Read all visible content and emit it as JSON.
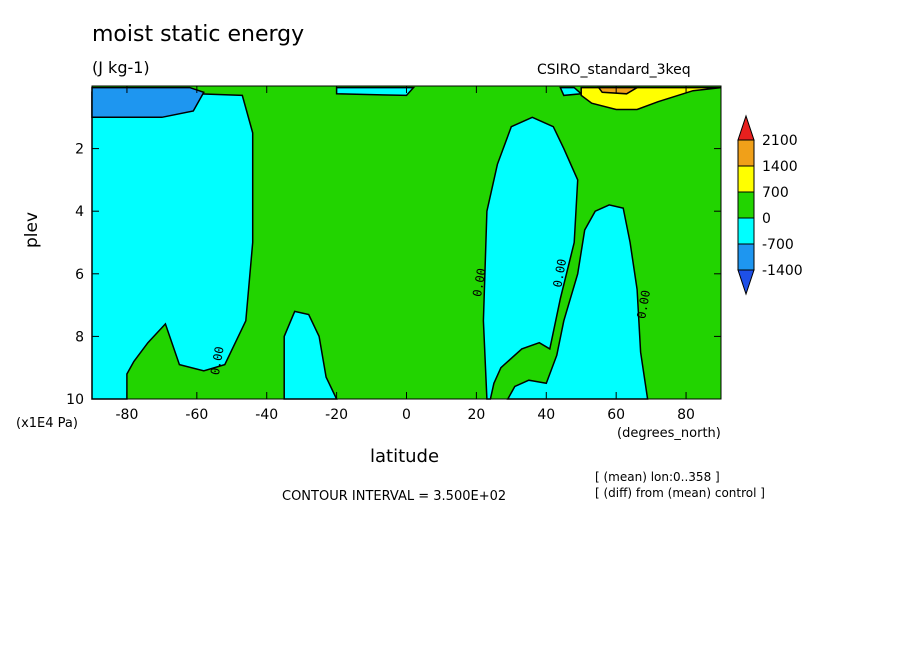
{
  "chart_data": {
    "type": "heatmap",
    "title": "moist static energy",
    "units": "(J kg-1)",
    "dataset": "CSIRO_standard_3keq",
    "xlabel": "latitude",
    "x_units": "(degrees_north)",
    "ylabel": "plev",
    "y_units": "(x1E4 Pa)",
    "xlim": [
      -90,
      90
    ],
    "ylim": [
      10,
      0
    ],
    "x_ticks": [
      "-80",
      "-60",
      "-40",
      "-20",
      "0",
      "20",
      "40",
      "60",
      "80"
    ],
    "x_tick_values": [
      -80,
      -60,
      -40,
      -20,
      0,
      20,
      40,
      60,
      80
    ],
    "y_ticks": [
      "2",
      "4",
      "6",
      "8",
      "10"
    ],
    "y_tick_values": [
      2,
      4,
      6,
      8,
      10
    ],
    "contour_interval": "CONTOUR INTERVAL = 3.500E+02",
    "notes": [
      "[ (mean) lon:0..358 ]",
      "[ (diff) from (mean) control ]"
    ],
    "contour_labels": [
      {
        "text": "0.00",
        "x": -53,
        "y": 8.8
      },
      {
        "text": "0.00",
        "x": 22,
        "y": 6.3
      },
      {
        "text": "0.00",
        "x": 45,
        "y": 6.0
      },
      {
        "text": "0.00",
        "x": 69,
        "y": 7.0
      }
    ],
    "legend": {
      "levels": [
        "2100",
        "1400",
        "700",
        "0",
        "-700",
        "-1400"
      ],
      "colors": [
        "#e8201e",
        "#f0a019",
        "#ffff00",
        "#22d400",
        "#00ffff",
        "#1e96f0",
        "#1e50e8"
      ]
    },
    "fill_colors": {
      "positive_0_700": "#22d400",
      "negative_0_700": "#00ffff",
      "negative_700_1400": "#1e96f0",
      "positive_700_1400": "#ffff00",
      "positive_1400_2100": "#f0a019"
    },
    "regions": [
      {
        "level": "negative_0_700",
        "points": [
          [
            -90,
            0.2
          ],
          [
            -60,
            0.25
          ],
          [
            -47,
            0.3
          ],
          [
            -44,
            1.5
          ],
          [
            -44,
            5
          ],
          [
            -46,
            7.5
          ],
          [
            -52,
            8.9
          ],
          [
            -58,
            9.1
          ],
          [
            -65,
            8.9
          ],
          [
            -69,
            7.6
          ],
          [
            -74,
            8.2
          ],
          [
            -78,
            8.8
          ],
          [
            -80,
            9.2
          ],
          [
            -80,
            10
          ],
          [
            -90,
            10
          ]
        ]
      },
      {
        "level": "negative_700_1400",
        "points": [
          [
            -90,
            0.05
          ],
          [
            -62,
            0.05
          ],
          [
            -58,
            0.2
          ],
          [
            -61,
            0.8
          ],
          [
            -70,
            1.0
          ],
          [
            -80,
            1.0
          ],
          [
            -90,
            1.0
          ]
        ]
      },
      {
        "level": "negative_0_700",
        "points": [
          [
            -35,
            10
          ],
          [
            -35,
            8.0
          ],
          [
            -32,
            7.2
          ],
          [
            -28,
            7.3
          ],
          [
            -25,
            8.0
          ],
          [
            -23,
            9.3
          ],
          [
            -20,
            10
          ]
        ]
      },
      {
        "level": "negative_0_700",
        "points": [
          [
            23,
            10
          ],
          [
            22,
            7.5
          ],
          [
            23,
            4.0
          ],
          [
            26,
            2.5
          ],
          [
            30,
            1.3
          ],
          [
            36,
            1.0
          ],
          [
            42,
            1.3
          ],
          [
            45,
            2.0
          ],
          [
            49,
            3.0
          ],
          [
            48,
            5.0
          ],
          [
            44,
            6.8
          ],
          [
            41,
            8.4
          ],
          [
            38,
            8.2
          ],
          [
            33,
            8.4
          ],
          [
            27,
            9.0
          ],
          [
            25,
            9.5
          ],
          [
            24,
            10
          ]
        ]
      },
      {
        "level": "negative_0_700",
        "points": [
          [
            29,
            10
          ],
          [
            31,
            9.6
          ],
          [
            35,
            9.4
          ],
          [
            40,
            9.5
          ],
          [
            43,
            8.6
          ],
          [
            45,
            7.5
          ],
          [
            49,
            6.0
          ],
          [
            51,
            4.6
          ],
          [
            54,
            4.0
          ],
          [
            58,
            3.8
          ],
          [
            62,
            3.9
          ],
          [
            64,
            5.0
          ],
          [
            66,
            6.5
          ],
          [
            67,
            8.5
          ],
          [
            69,
            10
          ]
        ]
      },
      {
        "level": "negative_0_700",
        "points": [
          [
            -20,
            0.05
          ],
          [
            -20,
            0.25
          ],
          [
            0,
            0.3
          ],
          [
            2,
            0.05
          ]
        ]
      },
      {
        "level": "negative_0_700",
        "points": [
          [
            44,
            0.05
          ],
          [
            45,
            0.3
          ],
          [
            50,
            0.25
          ],
          [
            48,
            0.05
          ]
        ]
      },
      {
        "level": "positive_700_1400",
        "points": [
          [
            50,
            0.05
          ],
          [
            50,
            0.3
          ],
          [
            53,
            0.55
          ],
          [
            60,
            0.75
          ],
          [
            66,
            0.75
          ],
          [
            72,
            0.5
          ],
          [
            82,
            0.15
          ],
          [
            90,
            0.05
          ]
        ]
      },
      {
        "level": "positive_1400_2100",
        "points": [
          [
            55,
            0.05
          ],
          [
            56,
            0.2
          ],
          [
            63,
            0.25
          ],
          [
            66,
            0.05
          ]
        ]
      }
    ]
  }
}
